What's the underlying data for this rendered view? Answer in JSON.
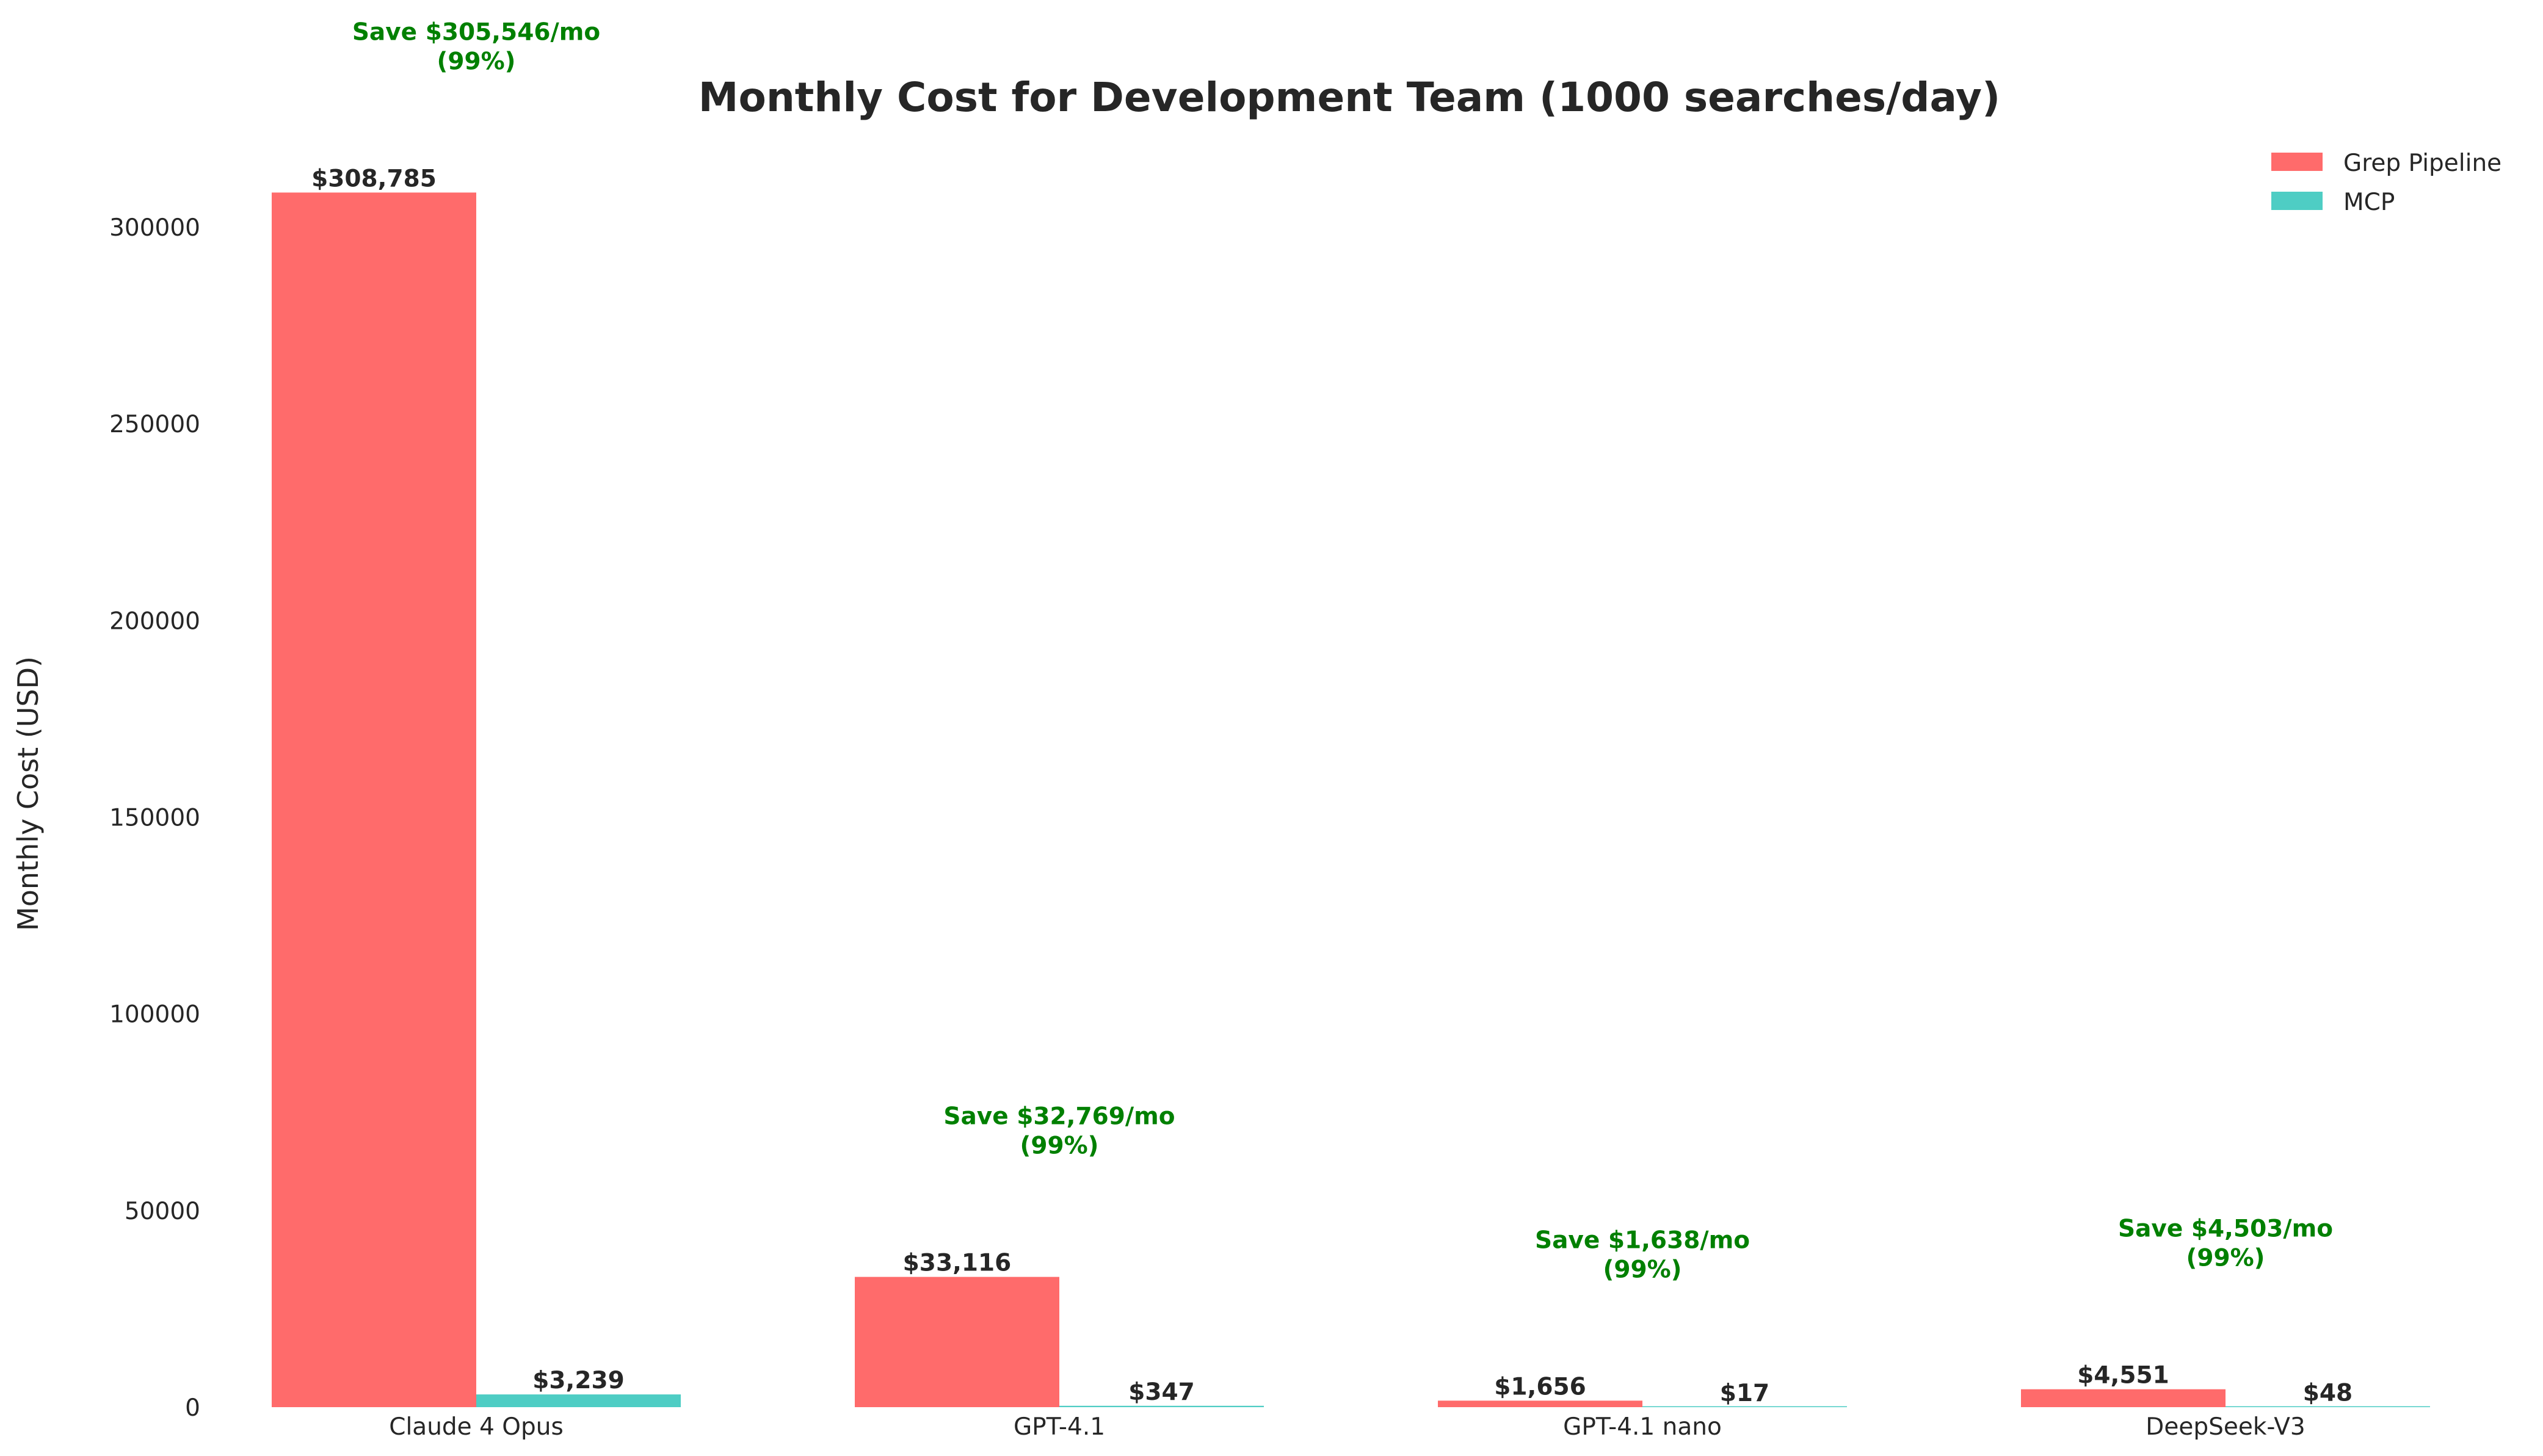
{
  "chart_data": {
    "type": "bar",
    "title": "Monthly Cost for Development Team (1000 searches/day)",
    "xlabel": "",
    "ylabel": "Monthly Cost (USD)",
    "ylim": [
      0,
      320000
    ],
    "yticks": [
      0,
      50000,
      100000,
      150000,
      200000,
      250000,
      300000
    ],
    "ytick_labels": [
      "0",
      "50000",
      "100000",
      "150000",
      "200000",
      "250000",
      "300000"
    ],
    "grid": false,
    "legend_position": "top-right",
    "categories": [
      "Claude 4 Opus",
      "GPT-4.1",
      "GPT-4.1 nano",
      "DeepSeek-V3"
    ],
    "series": [
      {
        "name": "Grep Pipeline",
        "color": "#ff6b6b",
        "values": [
          308785,
          33116,
          1656,
          4551
        ],
        "labels": [
          "$308,785",
          "$33,116",
          "$1,656",
          "$4,551"
        ]
      },
      {
        "name": "MCP",
        "color": "#4ecdc4",
        "values": [
          3239,
          347,
          17,
          48
        ],
        "labels": [
          "$3,239",
          "$347",
          "$17",
          "$48"
        ]
      }
    ],
    "savings_annotations": [
      {
        "line1": "Save $305,546/mo",
        "line2": "(99%)"
      },
      {
        "line1": "Save $32,769/mo",
        "line2": "(99%)"
      },
      {
        "line1": "Save $1,638/mo",
        "line2": "(99%)"
      },
      {
        "line1": "Save $4,503/mo",
        "line2": "(99%)"
      }
    ],
    "annotation_color": "#008000"
  }
}
